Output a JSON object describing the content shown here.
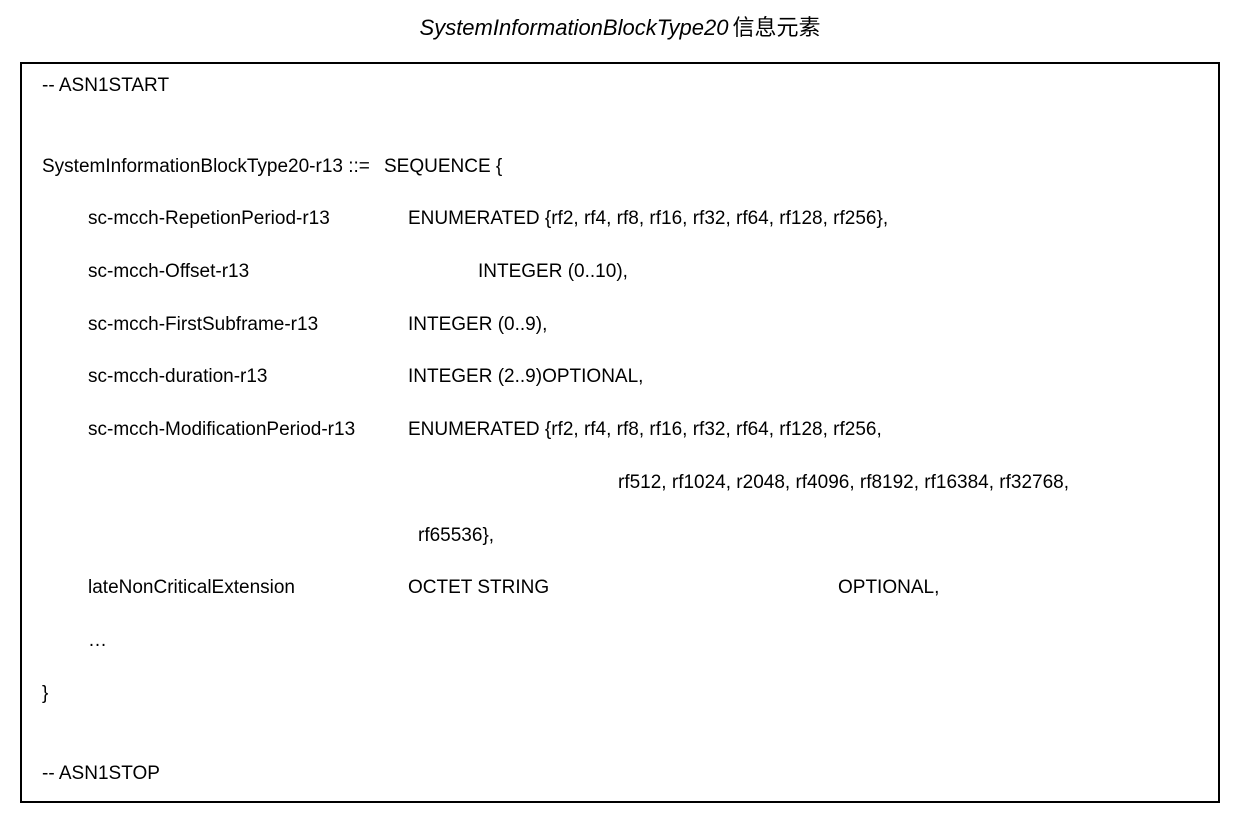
{
  "title": {
    "italic": "SystemInformationBlockType20",
    "suffix": "信息元素"
  },
  "code": {
    "asn_start": "-- ASN1START",
    "def_name": "SystemInformationBlockType20-r13 ::=",
    "def_seq": "SEQUENCE {",
    "f1_label": "sc-mcch-RepetionPeriod-r13",
    "f1_val": "ENUMERATED {rf2, rf4, rf8, rf16, rf32, rf64, rf128, rf256},",
    "f2_label": "sc-mcch-Offset-r13",
    "f2_val": "INTEGER (0..10),",
    "f3_label": "sc-mcch-FirstSubframe-r13",
    "f3_val": "INTEGER (0..9),",
    "f4_label": "sc-mcch-duration-r13",
    "f4_val": "INTEGER (2..9)OPTIONAL,",
    "f5_label": "sc-mcch-ModificationPeriod-r13",
    "f5_val1": "ENUMERATED {rf2, rf4, rf8, rf16, rf32, rf64, rf128, rf256,",
    "f5_val2": "rf512, rf1024, r2048, rf4096, rf8192, rf16384, rf32768,",
    "f5_val3": "rf65536},",
    "f6_label": "lateNonCriticalExtension",
    "f6_val_a": "OCTET STRING",
    "f6_val_b": "OPTIONAL,",
    "ellipsis": "…",
    "close": "}",
    "asn_stop": "-- ASN1STOP"
  },
  "style": {
    "border_color": "#000000",
    "bg_color": "#ffffff",
    "text_color": "#000000",
    "title_fontsize": 22,
    "code_fontsize": 19,
    "line_height": 1.3
  }
}
